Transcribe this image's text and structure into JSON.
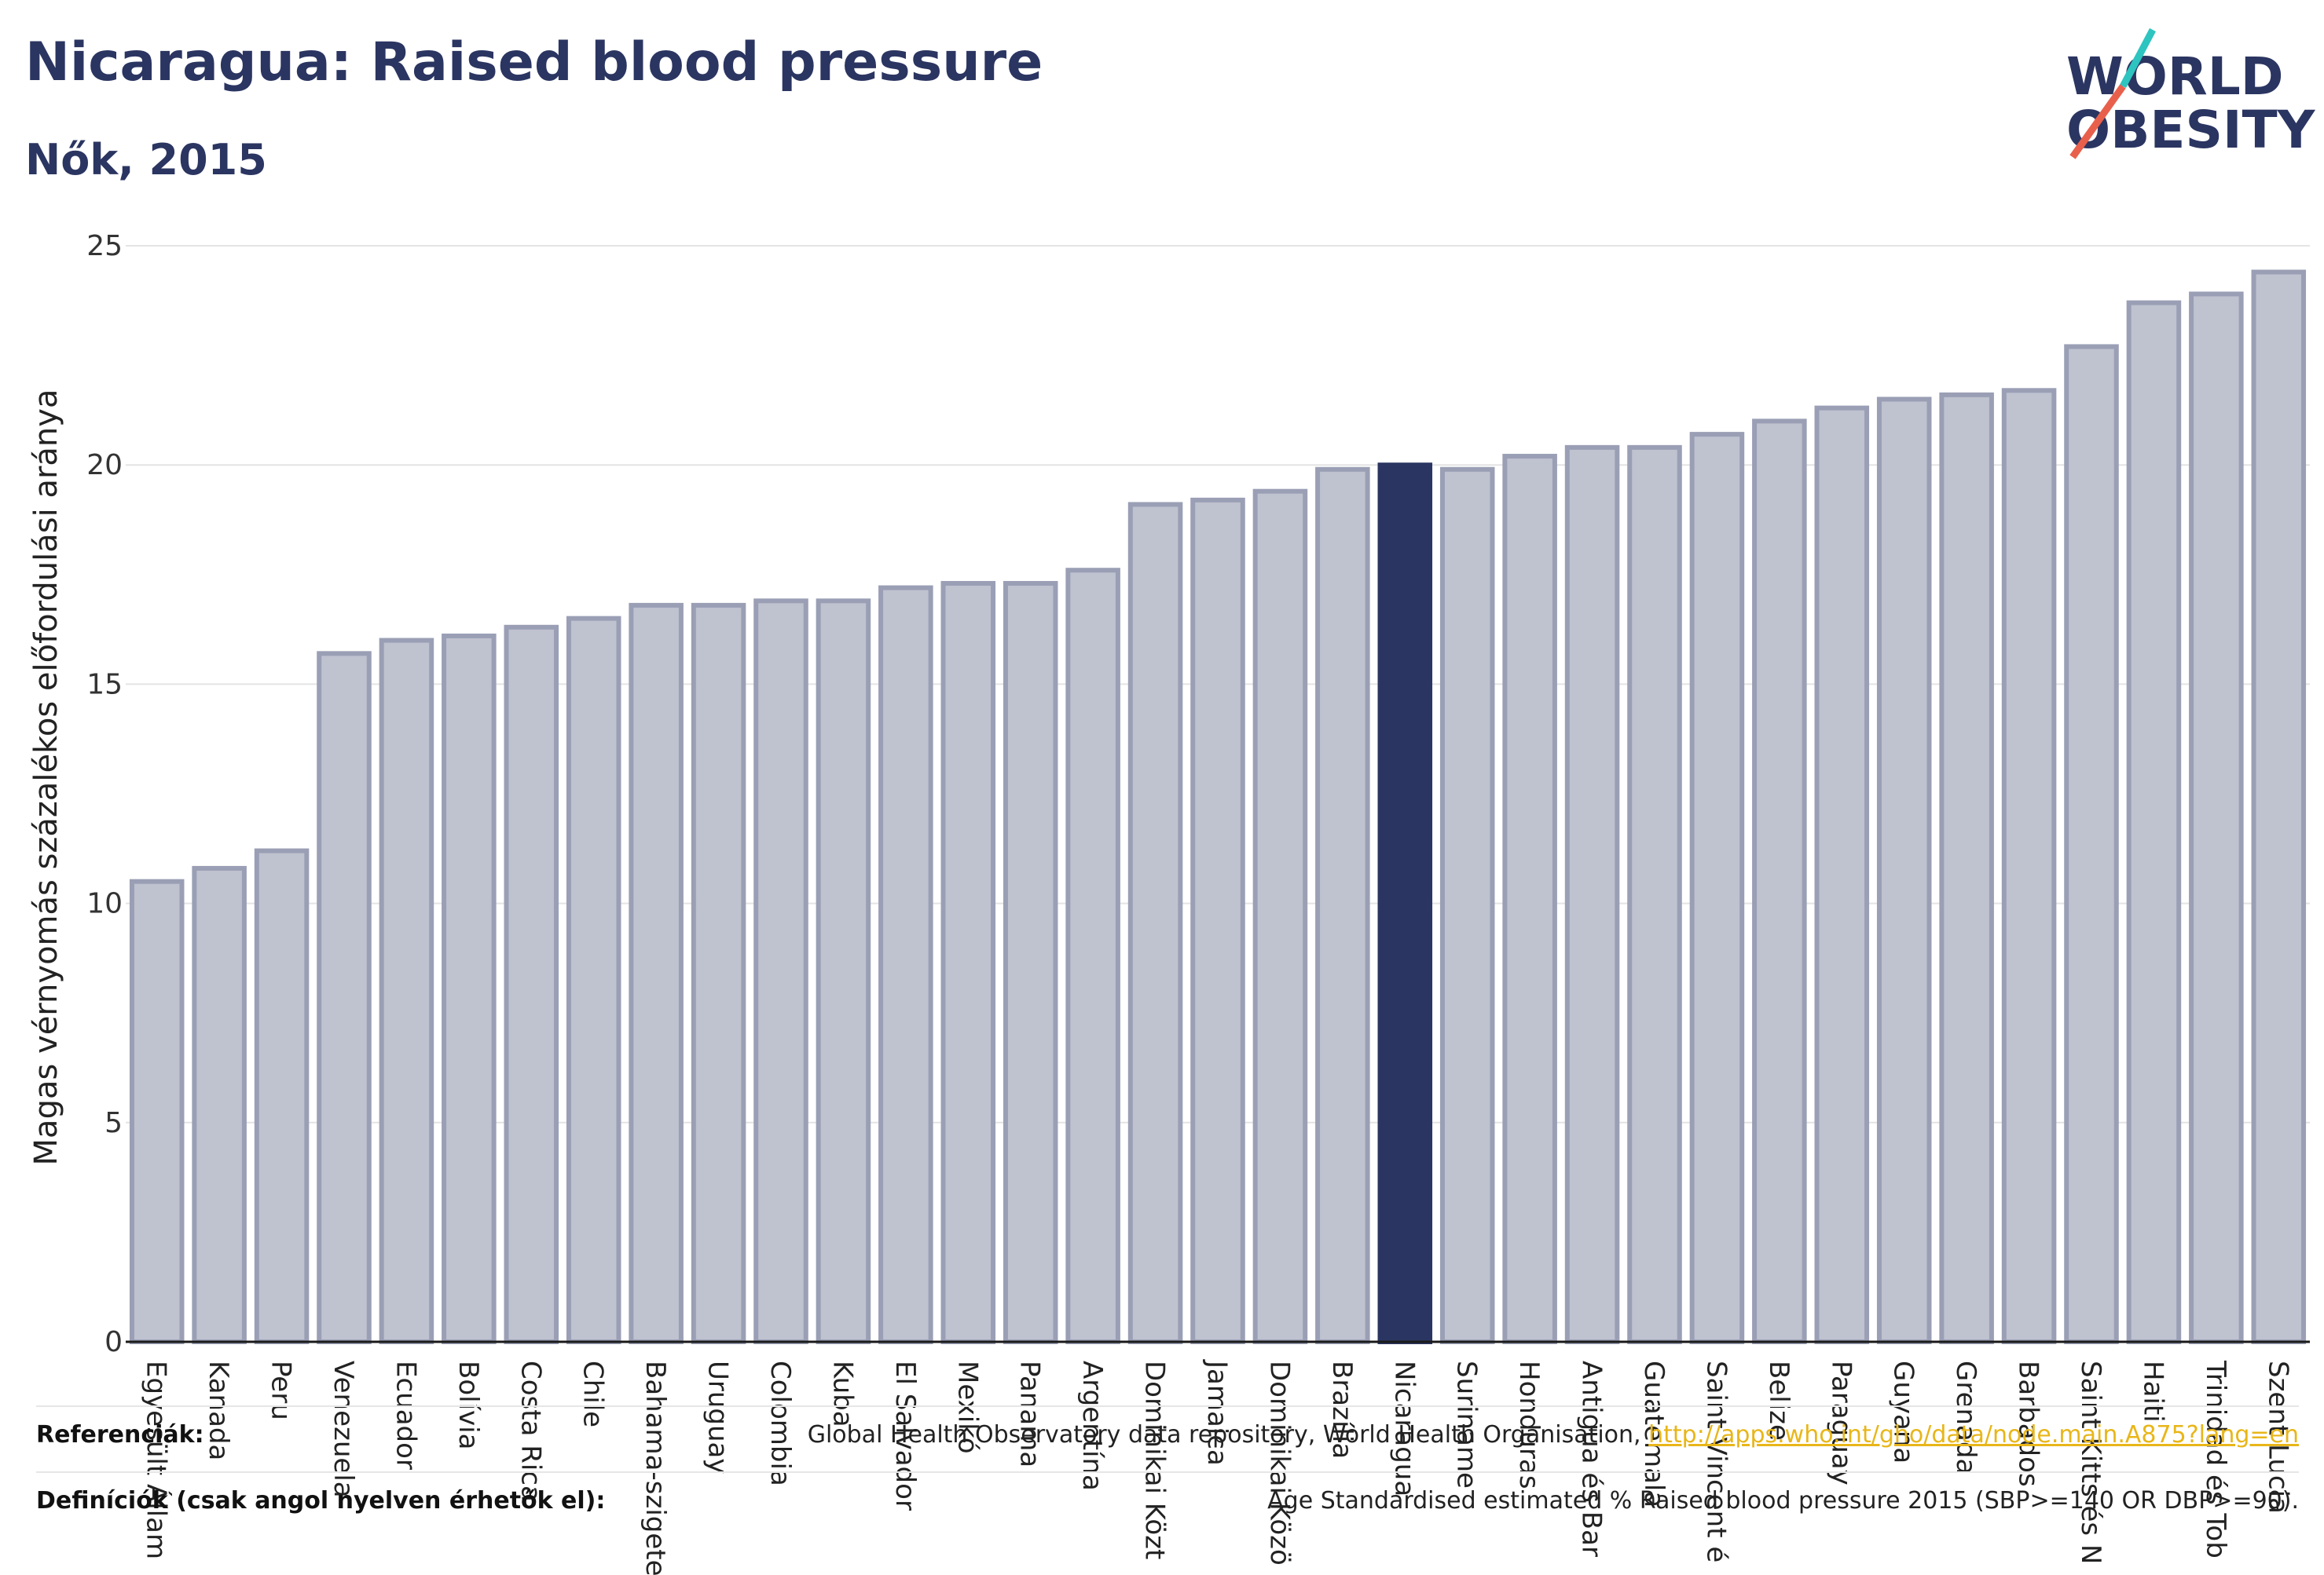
{
  "header": {
    "title": "Nicaragua: Raised blood pressure",
    "subtitle": "Nők, 2015"
  },
  "logo": {
    "line1": "WORLD",
    "line2": "OBESITY",
    "accent_colors": [
      "#2ec4c0",
      "#e8604c"
    ],
    "text_color": "#2b3561"
  },
  "colors": {
    "highlight": "#2b3561",
    "bar_fill": "#bfc2cf",
    "bar_stroke": "#9a9fb5",
    "title": "#2b3561",
    "link": "#e8b619"
  },
  "chart_data": {
    "type": "bar",
    "ylabel": "Magas vérnyomás százalékos előfordulási aránya",
    "ylim": [
      0,
      25
    ],
    "yticks": [
      0,
      5,
      10,
      15,
      20,
      25
    ],
    "grid": true,
    "highlight_category": "Nicaragua",
    "categories": [
      "Egyesült Állam",
      "Kanada",
      "Peru",
      "Venezuela",
      "Ecuador",
      "Bolívia",
      "Costa Rica",
      "Chile",
      "Bahama-szigetek",
      "Uruguay",
      "Colombia",
      "Kuba",
      "El Salvador",
      "Mexikó",
      "Panama",
      "Argentína",
      "Dominikai Közt",
      "Jamaica",
      "Dominikai Közö",
      "Brazília",
      "Nicaragua",
      "Suriname",
      "Honduras",
      "Antigua és Bar",
      "Guatemala",
      "Saint Vincent é",
      "Belize",
      "Paraguay",
      "Guyana",
      "Grenada",
      "Barbados",
      "Saint Kitts és N",
      "Haiti",
      "Trinidad és Tob",
      "Szent Lucia"
    ],
    "values": [
      10.5,
      10.8,
      11.2,
      15.7,
      16.0,
      16.1,
      16.3,
      16.5,
      16.8,
      16.8,
      16.9,
      16.9,
      17.2,
      17.3,
      17.3,
      17.6,
      19.1,
      19.2,
      19.4,
      19.9,
      20.0,
      19.9,
      20.2,
      20.4,
      20.4,
      20.7,
      21.0,
      21.3,
      21.5,
      21.6,
      21.7,
      22.7,
      23.7,
      23.9,
      24.4
    ]
  },
  "footer": {
    "references_label": "Referenciák:",
    "references_text": "Global Health Observatory data repository, World Health Organisation,",
    "references_link": "http://apps.who.int/gho/data/node.main.A875?lang=en",
    "definitions_label": "Definíciók (csak angol nyelven érhetők el):",
    "definitions_text": "Age Standardised estimated % Raised blood pressure 2015 (SBP>=140 OR DBP>=90)."
  }
}
